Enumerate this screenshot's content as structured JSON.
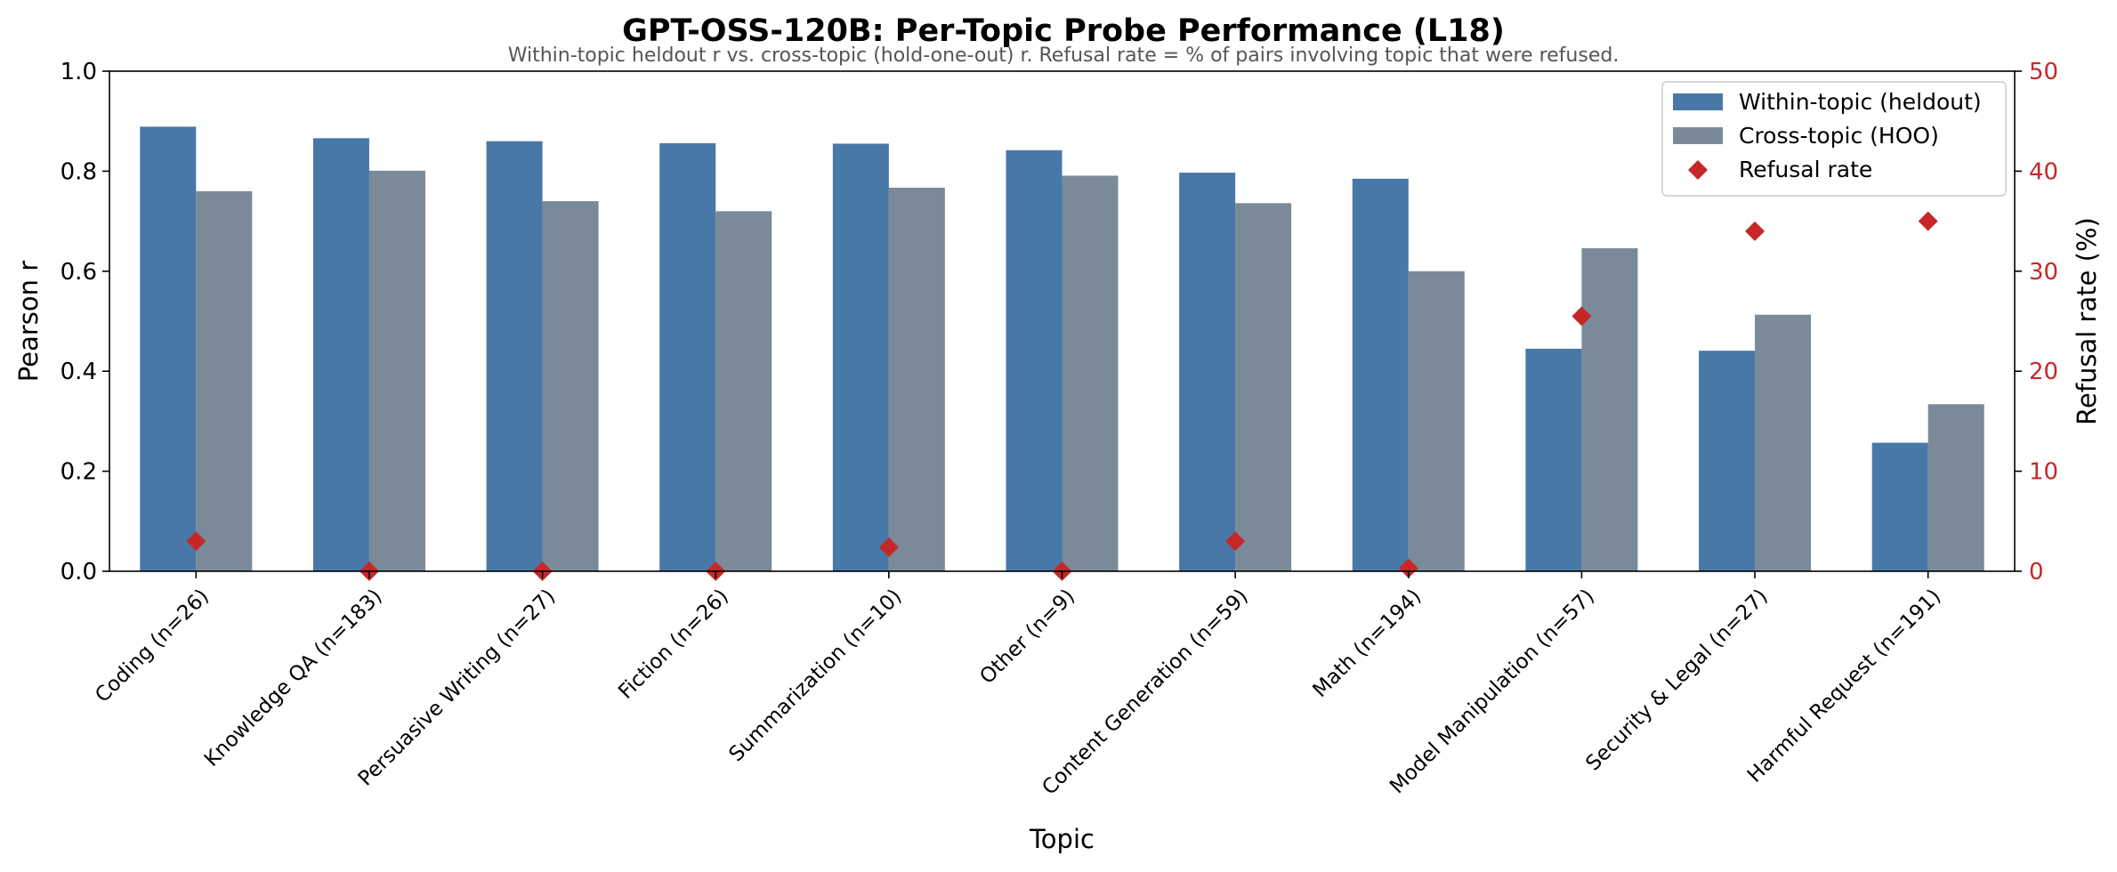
{
  "chart_data": {
    "type": "bar",
    "title": "GPT-OSS-120B: Per-Topic Probe Performance (L18)",
    "subtitle": "Within-topic heldout r vs. cross-topic (hold-one-out) r. Refusal rate = % of pairs involving topic that were refused.",
    "xlabel": "Topic",
    "ylabel": "Pearson r",
    "y2label": "Refusal rate (%)",
    "ylim": [
      0,
      1.0
    ],
    "y2lim": [
      0,
      50
    ],
    "yticks": [
      "0.0",
      "0.2",
      "0.4",
      "0.6",
      "0.8",
      "1.0"
    ],
    "y2ticks": [
      "0",
      "10",
      "20",
      "30",
      "40",
      "50"
    ],
    "grid": false,
    "legend_position": "top-right",
    "categories": [
      "Coding (n=26)",
      "Knowledge QA (n=183)",
      "Persuasive Writing (n=27)",
      "Fiction (n=26)",
      "Summarization (n=10)",
      "Other (n=9)",
      "Content Generation (n=59)",
      "Math (n=194)",
      "Model Manipulation (n=57)",
      "Security & Legal (n=27)",
      "Harmful Request (n=191)"
    ],
    "series": [
      {
        "name": "Within-topic (heldout)",
        "kind": "bar",
        "axis": "left",
        "color": "#4878a8",
        "values": [
          0.889,
          0.866,
          0.86,
          0.856,
          0.855,
          0.842,
          0.797,
          0.785,
          0.445,
          0.441,
          0.257
        ]
      },
      {
        "name": "Cross-topic (HOO)",
        "kind": "bar",
        "axis": "left",
        "color": "#7a8a98",
        "values": [
          0.76,
          0.801,
          0.74,
          0.72,
          0.767,
          0.791,
          0.736,
          0.6,
          0.646,
          0.513,
          0.334
        ]
      },
      {
        "name": "Refusal rate",
        "kind": "scatter",
        "axis": "right",
        "color": "#c62828",
        "marker": "diamond",
        "values": [
          3.0,
          0.0,
          0.0,
          0.0,
          2.4,
          0.0,
          3.0,
          0.3,
          25.5,
          34.0,
          35.0
        ]
      }
    ]
  }
}
